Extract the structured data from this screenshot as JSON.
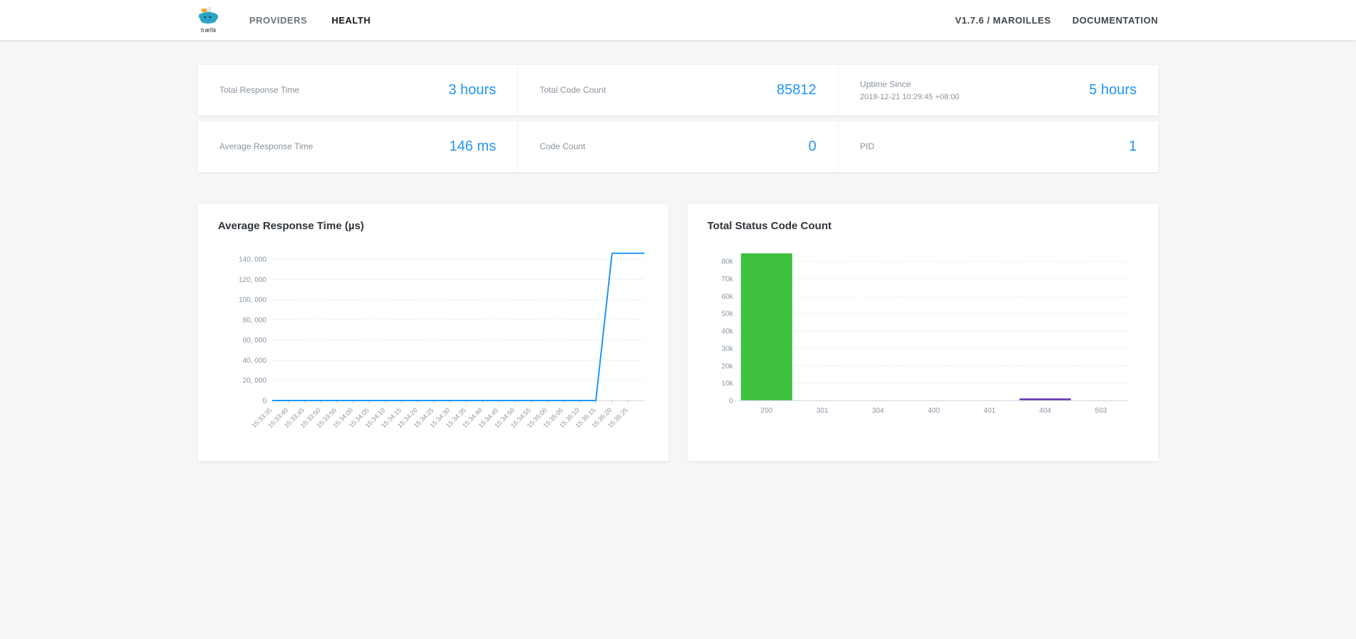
{
  "navbar": {
    "logo_text": "træfik",
    "items": [
      {
        "label": "PROVIDERS",
        "active": false
      },
      {
        "label": "HEALTH",
        "active": true
      }
    ],
    "right_items": [
      {
        "label": "V1.7.6 / MAROILLES"
      },
      {
        "label": "DOCUMENTATION"
      }
    ]
  },
  "stats": {
    "row1": [
      {
        "label": "Total Response Time",
        "value": "3 hours"
      },
      {
        "label": "Total Code Count",
        "value": "85812"
      },
      {
        "label": "Uptime Since",
        "sublabel": "2018-12-21 10:29:45 +08:00",
        "value": "5 hours"
      }
    ],
    "row2": [
      {
        "label": "Average Response Time",
        "value": "146 ms"
      },
      {
        "label": "Code Count",
        "value": "0"
      },
      {
        "label": "PID",
        "value": "1"
      }
    ]
  },
  "chart_data": [
    {
      "type": "line",
      "title": "Average Response Time (µs)",
      "x": [
        "15:33:35",
        "15:33:40",
        "15:33:45",
        "15:33:50",
        "15:33:55",
        "15:34:00",
        "15:34:05",
        "15:34:10",
        "15:34:15",
        "15:34:20",
        "15:34:25",
        "15:34:30",
        "15:34:35",
        "15:34:40",
        "15:34:45",
        "15:34:50",
        "15:34:55",
        "15:35:00",
        "15:35:05",
        "15:35:10",
        "15:35:15",
        "15:35:20",
        "15:35:25"
      ],
      "values": [
        0,
        0,
        0,
        0,
        0,
        0,
        0,
        0,
        0,
        0,
        0,
        0,
        0,
        0,
        0,
        0,
        0,
        0,
        0,
        0,
        0,
        146000,
        146000
      ],
      "ylim": [
        0,
        150000
      ],
      "yticks": [
        0,
        20000,
        40000,
        60000,
        80000,
        100000,
        120000,
        140000
      ],
      "ytick_labels": [
        "0",
        "20, 000",
        "40, 000",
        "60, 000",
        "80, 000",
        "100, 000",
        "120, 000",
        "140, 000"
      ],
      "line_color": "#2196f3",
      "grid": "dashed-horizontal",
      "legend": "none"
    },
    {
      "type": "bar",
      "title": "Total Status Code Count",
      "categories": [
        "200",
        "301",
        "304",
        "400",
        "401",
        "404",
        "503"
      ],
      "values": [
        84600,
        0,
        0,
        0,
        0,
        1212,
        0
      ],
      "bar_colors": [
        "#3EC13E",
        "#3EC13E",
        "#3EC13E",
        "#3EC13E",
        "#3EC13E",
        "#673AB7",
        "#3EC13E"
      ],
      "ylim": [
        0,
        87000
      ],
      "yticks": [
        0,
        10000,
        20000,
        30000,
        40000,
        50000,
        60000,
        70000,
        80000
      ],
      "ytick_labels": [
        "0",
        "10k",
        "20k",
        "30k",
        "40k",
        "50k",
        "60k",
        "70k",
        "80k"
      ],
      "grid": "dashed-horizontal",
      "legend": "none"
    }
  ]
}
